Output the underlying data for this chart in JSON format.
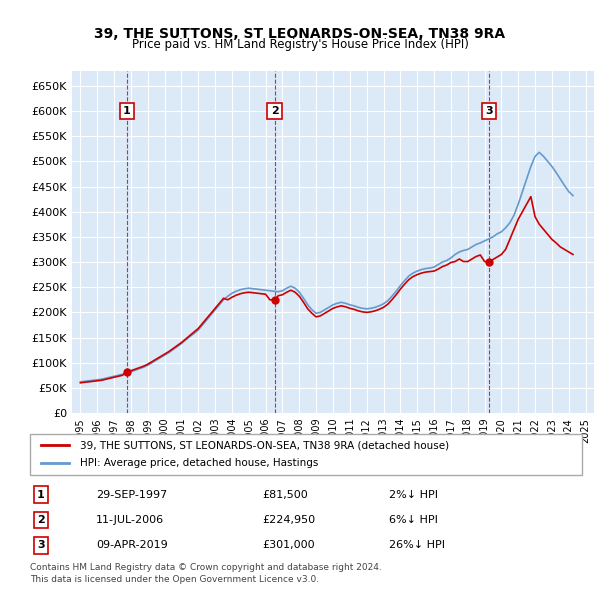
{
  "title": "39, THE SUTTONS, ST LEONARDS-ON-SEA, TN38 9RA",
  "subtitle": "Price paid vs. HM Land Registry's House Price Index (HPI)",
  "legend_line1": "39, THE SUTTONS, ST LEONARDS-ON-SEA, TN38 9RA (detached house)",
  "legend_line2": "HPI: Average price, detached house, Hastings",
  "footnote1": "Contains HM Land Registry data © Crown copyright and database right 2024.",
  "footnote2": "This data is licensed under the Open Government Licence v3.0.",
  "transactions": [
    {
      "label": "1",
      "date": "29-SEP-1997",
      "price": 81500,
      "pct": "2%↓ HPI",
      "x": 1997.75
    },
    {
      "label": "2",
      "date": "11-JUL-2006",
      "price": 224950,
      "pct": "6%↓ HPI",
      "x": 2006.53
    },
    {
      "label": "3",
      "date": "09-APR-2019",
      "price": 301000,
      "pct": "26%↓ HPI",
      "x": 2019.27
    }
  ],
  "hpi_color": "#6699cc",
  "price_color": "#cc0000",
  "background_color": "#dce9f7",
  "grid_color": "#ffffff",
  "ylim": [
    0,
    680000
  ],
  "xlim": [
    1994.5,
    2025.5
  ],
  "yticks": [
    0,
    50000,
    100000,
    150000,
    200000,
    250000,
    300000,
    350000,
    400000,
    450000,
    500000,
    550000,
    600000,
    650000
  ],
  "hpi_x": [
    1995.0,
    1995.25,
    1995.5,
    1995.75,
    1996.0,
    1996.25,
    1996.5,
    1996.75,
    1997.0,
    1997.25,
    1997.5,
    1997.75,
    1998.0,
    1998.25,
    1998.5,
    1998.75,
    1999.0,
    1999.25,
    1999.5,
    1999.75,
    2000.0,
    2000.25,
    2000.5,
    2000.75,
    2001.0,
    2001.25,
    2001.5,
    2001.75,
    2002.0,
    2002.25,
    2002.5,
    2002.75,
    2003.0,
    2003.25,
    2003.5,
    2003.75,
    2004.0,
    2004.25,
    2004.5,
    2004.75,
    2005.0,
    2005.25,
    2005.5,
    2005.75,
    2006.0,
    2006.25,
    2006.5,
    2006.75,
    2007.0,
    2007.25,
    2007.5,
    2007.75,
    2008.0,
    2008.25,
    2008.5,
    2008.75,
    2009.0,
    2009.25,
    2009.5,
    2009.75,
    2010.0,
    2010.25,
    2010.5,
    2010.75,
    2011.0,
    2011.25,
    2011.5,
    2011.75,
    2012.0,
    2012.25,
    2012.5,
    2012.75,
    2013.0,
    2013.25,
    2013.5,
    2013.75,
    2014.0,
    2014.25,
    2014.5,
    2014.75,
    2015.0,
    2015.25,
    2015.5,
    2015.75,
    2016.0,
    2016.25,
    2016.5,
    2016.75,
    2017.0,
    2017.25,
    2017.5,
    2017.75,
    2018.0,
    2018.25,
    2018.5,
    2018.75,
    2019.0,
    2019.25,
    2019.5,
    2019.75,
    2020.0,
    2020.25,
    2020.5,
    2020.75,
    2021.0,
    2021.25,
    2021.5,
    2021.75,
    2022.0,
    2022.25,
    2022.5,
    2022.75,
    2023.0,
    2023.25,
    2023.5,
    2023.75,
    2024.0,
    2024.25
  ],
  "hpi_y": [
    62000,
    63000,
    64000,
    65000,
    66000,
    67000,
    69000,
    71000,
    73000,
    75000,
    77000,
    79000,
    82000,
    85000,
    88000,
    91000,
    95000,
    100000,
    105000,
    110000,
    115000,
    120000,
    126000,
    132000,
    138000,
    145000,
    152000,
    158000,
    165000,
    175000,
    185000,
    195000,
    205000,
    215000,
    225000,
    232000,
    238000,
    242000,
    245000,
    247000,
    248000,
    247000,
    246000,
    245000,
    244000,
    243000,
    242000,
    241000,
    243000,
    248000,
    252000,
    248000,
    240000,
    228000,
    215000,
    205000,
    198000,
    200000,
    205000,
    210000,
    215000,
    218000,
    220000,
    218000,
    215000,
    213000,
    210000,
    208000,
    207000,
    208000,
    210000,
    213000,
    217000,
    223000,
    232000,
    242000,
    253000,
    263000,
    272000,
    278000,
    282000,
    285000,
    287000,
    288000,
    290000,
    295000,
    300000,
    303000,
    308000,
    315000,
    320000,
    323000,
    325000,
    330000,
    335000,
    338000,
    342000,
    346000,
    350000,
    356000,
    360000,
    368000,
    378000,
    393000,
    415000,
    440000,
    465000,
    490000,
    510000,
    518000,
    510000,
    500000,
    490000,
    478000,
    465000,
    452000,
    440000,
    432000
  ],
  "price_x": [
    1995.0,
    1995.25,
    1995.5,
    1995.75,
    1996.0,
    1996.25,
    1996.5,
    1996.75,
    1997.0,
    1997.25,
    1997.5,
    1997.75,
    1998.0,
    1998.25,
    1998.5,
    1998.75,
    1999.0,
    1999.25,
    1999.5,
    1999.75,
    2000.0,
    2000.25,
    2000.5,
    2000.75,
    2001.0,
    2001.25,
    2001.5,
    2001.75,
    2002.0,
    2002.25,
    2002.5,
    2002.75,
    2003.0,
    2003.25,
    2003.5,
    2003.75,
    2004.0,
    2004.25,
    2004.5,
    2004.75,
    2005.0,
    2005.25,
    2005.5,
    2005.75,
    2006.0,
    2006.25,
    2006.5,
    2006.75,
    2007.0,
    2007.25,
    2007.5,
    2007.75,
    2008.0,
    2008.25,
    2008.5,
    2008.75,
    2009.0,
    2009.25,
    2009.5,
    2009.75,
    2010.0,
    2010.25,
    2010.5,
    2010.75,
    2011.0,
    2011.25,
    2011.5,
    2011.75,
    2012.0,
    2012.25,
    2012.5,
    2012.75,
    2013.0,
    2013.25,
    2013.5,
    2013.75,
    2014.0,
    2014.25,
    2014.5,
    2014.75,
    2015.0,
    2015.25,
    2015.5,
    2015.75,
    2016.0,
    2016.25,
    2016.5,
    2016.75,
    2017.0,
    2017.25,
    2017.5,
    2017.75,
    2018.0,
    2018.25,
    2018.5,
    2018.75,
    2019.0,
    2019.25,
    2019.5,
    2019.75,
    2020.0,
    2020.25,
    2020.5,
    2020.75,
    2021.0,
    2021.25,
    2021.5,
    2021.75,
    2022.0,
    2022.25,
    2022.5,
    2022.75,
    2023.0,
    2023.25,
    2023.5,
    2023.75,
    2024.0,
    2024.25
  ],
  "price_y": [
    60000,
    61000,
    62000,
    63000,
    64000,
    65000,
    67000,
    69000,
    71000,
    73000,
    75000,
    81500,
    84000,
    87000,
    90000,
    93000,
    97000,
    102000,
    107000,
    112000,
    117000,
    122000,
    128000,
    134000,
    140000,
    147000,
    154000,
    161000,
    168000,
    178000,
    188000,
    198000,
    208000,
    218000,
    228000,
    224950,
    230000,
    234000,
    237000,
    239000,
    240000,
    239000,
    238000,
    237000,
    236000,
    224950,
    224950,
    233000,
    235000,
    240000,
    244000,
    240000,
    232000,
    220000,
    207000,
    198000,
    191000,
    193000,
    198000,
    203000,
    208000,
    211000,
    213000,
    211000,
    208000,
    206000,
    203000,
    201000,
    200000,
    201000,
    203000,
    206000,
    210000,
    216000,
    225000,
    235000,
    246000,
    256000,
    265000,
    271000,
    275000,
    278000,
    280000,
    281000,
    282000,
    286000,
    291000,
    294000,
    299000,
    301000,
    306000,
    301000,
    301000,
    306000,
    311000,
    314000,
    301000,
    301000,
    305000,
    310000,
    315000,
    325000,
    345000,
    365000,
    385000,
    400000,
    415000,
    430000,
    390000,
    375000,
    365000,
    355000,
    345000,
    338000,
    330000,
    325000,
    320000,
    315000
  ],
  "xticks": [
    1995,
    1996,
    1997,
    1998,
    1999,
    2000,
    2001,
    2002,
    2003,
    2004,
    2005,
    2006,
    2007,
    2008,
    2009,
    2010,
    2011,
    2012,
    2013,
    2014,
    2015,
    2016,
    2017,
    2018,
    2019,
    2020,
    2021,
    2022,
    2023,
    2024,
    2025
  ]
}
